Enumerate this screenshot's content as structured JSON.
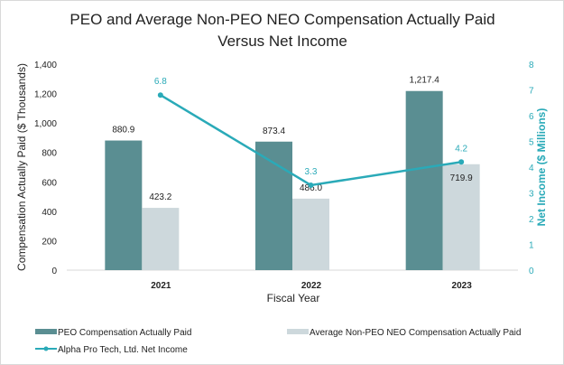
{
  "chart_data": {
    "type": "bar",
    "title_lines": [
      "PEO and Average Non-PEO NEO Compensation Actually Paid",
      "Versus Net Income"
    ],
    "xlabel": "Fiscal Year",
    "ylabel": "Compensation Actually Paid ($ Thousands)",
    "y2label": "Net Income ($ Millions)",
    "categories": [
      "2021",
      "2022",
      "2023"
    ],
    "ylim": [
      0,
      1400
    ],
    "yticks": [
      "0",
      "200",
      "400",
      "600",
      "800",
      "1,000",
      "1,200",
      "1,400"
    ],
    "y2lim": [
      0,
      8
    ],
    "y2ticks": [
      "0",
      "1",
      "2",
      "3",
      "4",
      "5",
      "6",
      "7",
      "8"
    ],
    "grid": false,
    "legend_position": "bottom",
    "series": [
      {
        "name": "PEO Compensation Actually Paid",
        "type": "bar",
        "axis": "left",
        "color": "#5a8e92",
        "values": [
          880.9,
          873.4,
          1217.4
        ],
        "labels": [
          "880.9",
          "873.4",
          "1,217.4"
        ]
      },
      {
        "name": "Average Non-PEO NEO Compensation Actually Paid",
        "type": "bar",
        "axis": "left",
        "color": "#cdd8dc",
        "values": [
          423.2,
          486.0,
          719.9
        ],
        "labels": [
          "423.2",
          "486.0",
          "719.9"
        ]
      },
      {
        "name": "Alpha Pro Tech, Ltd. Net Income",
        "type": "line",
        "axis": "right",
        "color": "#2aaab8",
        "values": [
          6.8,
          3.3,
          4.2
        ],
        "labels": [
          "6.8",
          "3.3",
          "4.2"
        ]
      }
    ]
  }
}
